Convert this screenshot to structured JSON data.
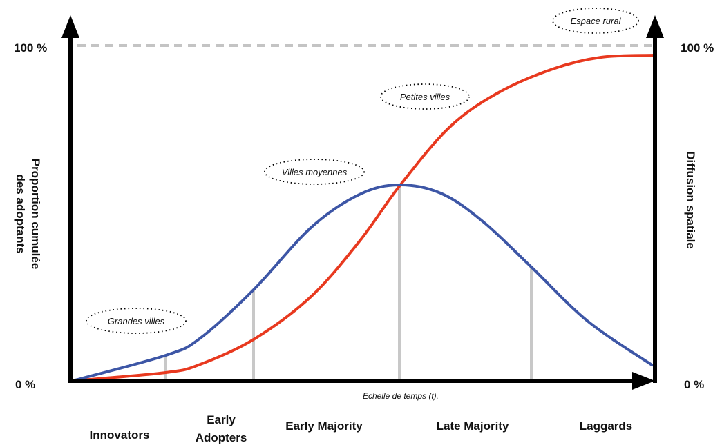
{
  "left_axis": {
    "top_label": "100 %",
    "bottom_label": "0 %",
    "title": [
      "Proportion cumulée",
      "des adoptants"
    ]
  },
  "right_axis": {
    "top_label": "100 %",
    "bottom_label": "0 %",
    "title": "Diffusion spatiale"
  },
  "x_axis": {
    "title": "Echelle de temps (t)."
  },
  "phases": [
    [
      "Innovators"
    ],
    [
      "Early",
      "Adopters"
    ],
    [
      "Early Majority"
    ],
    [
      "Late Majority"
    ],
    [
      "Laggards"
    ]
  ],
  "places": [
    "Grandes villes",
    "Villes moyennes",
    "Petites villes",
    "Espace rural"
  ]
}
